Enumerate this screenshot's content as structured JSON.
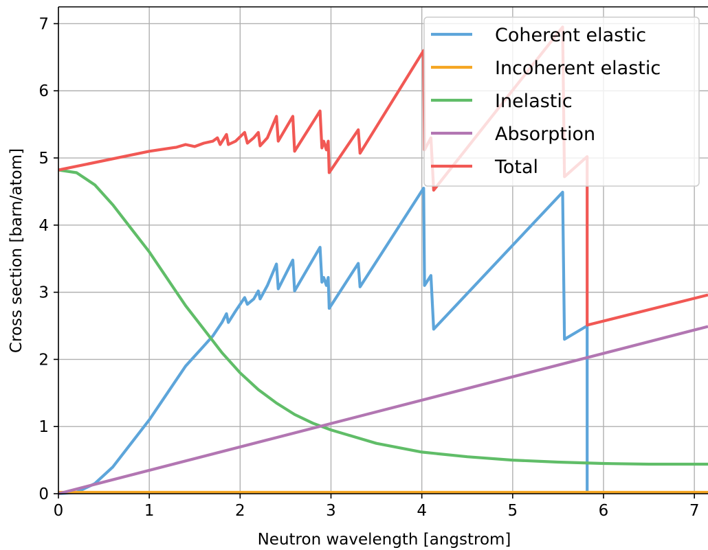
{
  "chart_data": {
    "type": "line",
    "title": "",
    "xlabel": "Neutron wavelength [angstrom]",
    "ylabel": "Cross section [barn/atom]",
    "xlim": [
      0,
      7.15
    ],
    "ylim": [
      0,
      7.25
    ],
    "grid": true,
    "legend_position": "top-right",
    "x_ticks": [
      0,
      1,
      2,
      3,
      4,
      5,
      6,
      7
    ],
    "y_ticks": [
      0,
      1,
      2,
      3,
      4,
      5,
      6,
      7
    ],
    "series": [
      {
        "name": "Coherent elastic",
        "color": "#5da5da",
        "points": [
          [
            0,
            0
          ],
          [
            0.2,
            0.02
          ],
          [
            0.4,
            0.15
          ],
          [
            0.6,
            0.4
          ],
          [
            0.8,
            0.75
          ],
          [
            1.0,
            1.1
          ],
          [
            1.2,
            1.5
          ],
          [
            1.4,
            1.9
          ],
          [
            1.6,
            2.2
          ],
          [
            1.7,
            2.35
          ],
          [
            1.8,
            2.55
          ],
          [
            1.85,
            2.68
          ],
          [
            1.87,
            2.55
          ],
          [
            1.95,
            2.72
          ],
          [
            2.05,
            2.92
          ],
          [
            2.08,
            2.82
          ],
          [
            2.15,
            2.9
          ],
          [
            2.2,
            3.02
          ],
          [
            2.22,
            2.9
          ],
          [
            2.3,
            3.1
          ],
          [
            2.4,
            3.42
          ],
          [
            2.42,
            3.05
          ],
          [
            2.58,
            3.48
          ],
          [
            2.6,
            3.02
          ],
          [
            2.88,
            3.67
          ],
          [
            2.9,
            3.15
          ],
          [
            2.92,
            3.22
          ],
          [
            2.95,
            3.1
          ],
          [
            2.97,
            3.22
          ],
          [
            2.98,
            2.76
          ],
          [
            3.3,
            3.43
          ],
          [
            3.32,
            3.08
          ],
          [
            4.02,
            4.55
          ],
          [
            4.03,
            3.1
          ],
          [
            4.1,
            3.25
          ],
          [
            4.13,
            2.45
          ],
          [
            5.55,
            4.49
          ],
          [
            5.57,
            2.3
          ],
          [
            5.82,
            2.5
          ],
          [
            5.82,
            0
          ]
        ]
      },
      {
        "name": "Incoherent elastic",
        "color": "#f5a623",
        "points": [
          [
            0,
            0.02
          ],
          [
            7.15,
            0.02
          ]
        ]
      },
      {
        "name": "Inelastic",
        "color": "#60bd68",
        "points": [
          [
            0,
            4.82
          ],
          [
            0.2,
            4.78
          ],
          [
            0.4,
            4.6
          ],
          [
            0.6,
            4.3
          ],
          [
            0.8,
            3.95
          ],
          [
            1.0,
            3.6
          ],
          [
            1.2,
            3.2
          ],
          [
            1.4,
            2.8
          ],
          [
            1.6,
            2.45
          ],
          [
            1.8,
            2.1
          ],
          [
            2.0,
            1.8
          ],
          [
            2.2,
            1.55
          ],
          [
            2.4,
            1.35
          ],
          [
            2.6,
            1.18
          ],
          [
            2.8,
            1.05
          ],
          [
            3.0,
            0.95
          ],
          [
            3.5,
            0.75
          ],
          [
            4.0,
            0.62
          ],
          [
            4.5,
            0.55
          ],
          [
            5.0,
            0.5
          ],
          [
            5.5,
            0.47
          ],
          [
            6.0,
            0.45
          ],
          [
            6.5,
            0.44
          ],
          [
            7.15,
            0.44
          ]
        ]
      },
      {
        "name": "Absorption",
        "color": "#b276b2",
        "points": [
          [
            0,
            0
          ],
          [
            7.15,
            2.49
          ]
        ]
      },
      {
        "name": "Total",
        "color": "#f15854",
        "points": [
          [
            0,
            4.82
          ],
          [
            1.0,
            5.1
          ],
          [
            1.3,
            5.16
          ],
          [
            1.4,
            5.2
          ],
          [
            1.5,
            5.17
          ],
          [
            1.6,
            5.22
          ],
          [
            1.7,
            5.25
          ],
          [
            1.75,
            5.3
          ],
          [
            1.78,
            5.2
          ],
          [
            1.85,
            5.35
          ],
          [
            1.87,
            5.2
          ],
          [
            1.95,
            5.25
          ],
          [
            2.05,
            5.38
          ],
          [
            2.08,
            5.22
          ],
          [
            2.15,
            5.3
          ],
          [
            2.2,
            5.38
          ],
          [
            2.22,
            5.18
          ],
          [
            2.3,
            5.3
          ],
          [
            2.4,
            5.62
          ],
          [
            2.42,
            5.25
          ],
          [
            2.58,
            5.62
          ],
          [
            2.6,
            5.1
          ],
          [
            2.88,
            5.7
          ],
          [
            2.9,
            5.15
          ],
          [
            2.92,
            5.25
          ],
          [
            2.95,
            5.12
          ],
          [
            2.97,
            5.25
          ],
          [
            2.98,
            4.78
          ],
          [
            3.3,
            5.42
          ],
          [
            3.32,
            5.07
          ],
          [
            4.02,
            6.6
          ],
          [
            4.03,
            5.12
          ],
          [
            4.1,
            5.3
          ],
          [
            4.13,
            4.52
          ],
          [
            5.55,
            6.95
          ],
          [
            5.57,
            4.72
          ],
          [
            5.82,
            5.02
          ],
          [
            5.82,
            2.51
          ],
          [
            7.15,
            2.96
          ]
        ]
      }
    ]
  }
}
